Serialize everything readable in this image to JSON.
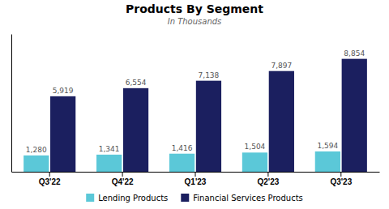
{
  "chart_data": {
    "type": "bar",
    "title": "Products By Segment",
    "subtitle": "In Thousands",
    "categories": [
      "Q3'22",
      "Q4'22",
      "Q1'23",
      "Q2'23",
      "Q3'23"
    ],
    "series": [
      {
        "name": "Lending Products",
        "color": "#5bc8d8",
        "values": [
          1280,
          1341,
          1416,
          1504,
          1594
        ],
        "value_labels": [
          "1,280",
          "1,341",
          "1,416",
          "1,504",
          "1,594"
        ]
      },
      {
        "name": "Financial Services Products",
        "color": "#1b1f5f",
        "values": [
          5919,
          6554,
          7138,
          7897,
          8854
        ],
        "value_labels": [
          "5,919",
          "6,554",
          "7,138",
          "7,897",
          "8,854"
        ]
      }
    ],
    "ylim": [
      0,
      10800
    ],
    "data_labels": true,
    "tick_labels": "x",
    "grid": false,
    "legend": "bottom"
  }
}
